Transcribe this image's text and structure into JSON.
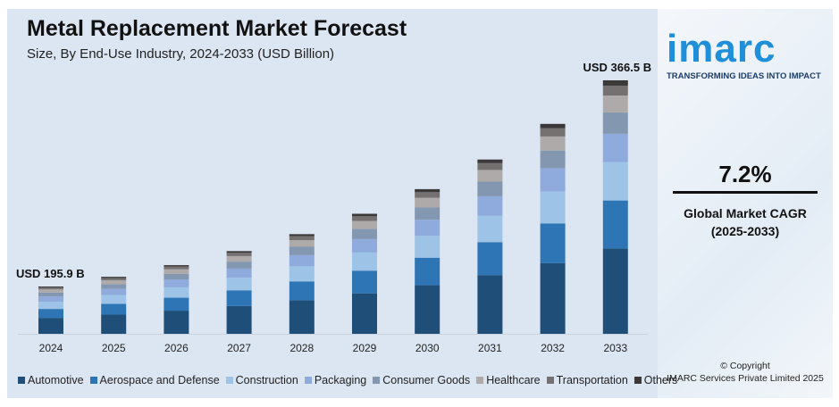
{
  "chart_data": {
    "type": "bar",
    "stacked": true,
    "title": "Metal Replacement Market Forecast",
    "subtitle": "Size, By End-Use Industry, 2024-2033 (USD Billion)",
    "categories": [
      "2024",
      "2025",
      "2026",
      "2027",
      "2028",
      "2029",
      "2030",
      "2031",
      "2032",
      "2033"
    ],
    "totals": [
      195.9,
      210.0,
      225.1,
      241.3,
      258.7,
      277.3,
      297.3,
      318.7,
      341.6,
      366.5
    ],
    "annotations": [
      {
        "category": "2024",
        "text": "USD 195.9 B"
      },
      {
        "category": "2033",
        "text": "USD 366.5 B"
      }
    ],
    "series": [
      {
        "name": "Automotive",
        "color": "#1f4e79",
        "share": 0.337
      },
      {
        "name": "Aerospace and Defense",
        "color": "#2e75b6",
        "share": 0.189
      },
      {
        "name": "Construction",
        "color": "#9dc3e6",
        "share": 0.151
      },
      {
        "name": "Packaging",
        "color": "#8faadc",
        "share": 0.112
      },
      {
        "name": "Consumer Goods",
        "color": "#8497b0",
        "share": 0.084
      },
      {
        "name": "Healthcare",
        "color": "#aeaaaa",
        "share": 0.067
      },
      {
        "name": "Transportation",
        "color": "#767171",
        "share": 0.039
      },
      {
        "name": "Others",
        "color": "#3b3838",
        "share": 0.021
      }
    ],
    "legend": "bottom",
    "grid": false
  },
  "brand": {
    "logo": "imarc",
    "tagline": "TRANSFORMING IDEAS INTO IMPACT"
  },
  "cagr": {
    "value": "7.2%",
    "label": "Global Market CAGR",
    "period": "(2025-2033)"
  },
  "copyright": {
    "line1": "© Copyright",
    "line2": "IMARC Services Private Limited 2025"
  }
}
